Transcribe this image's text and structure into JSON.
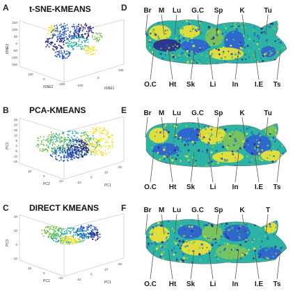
{
  "panels_left": [
    {
      "letter": "A",
      "title": "t-SNE-KMEANS",
      "axis_z_label": "tSNE3",
      "axis_x_label": "tSNE2",
      "axis_y_label": "tSNE1",
      "z_ticks": [
        "150",
        "100",
        "50",
        "0",
        "-50",
        "-100",
        "-150"
      ],
      "x_ticks": [
        "100",
        "0",
        "-100"
      ],
      "y_ticks": [
        "-100",
        "0",
        "100"
      ]
    },
    {
      "letter": "B",
      "title": "PCA-KMEANS",
      "axis_z_label": "PC3",
      "axis_x_label": "PC2",
      "axis_y_label": "PC1",
      "z_ticks": [
        "25",
        "20",
        "15",
        "10",
        "5",
        "0",
        "-5",
        "-10",
        "-15"
      ],
      "x_ticks": [
        "10",
        "0",
        "-10"
      ],
      "y_ticks": [
        "-10",
        "0",
        "10",
        "20"
      ]
    },
    {
      "letter": "C",
      "title": "DIRECT KMEANS",
      "axis_z_label": "PC3",
      "axis_x_label": "PC2",
      "axis_y_label": "PC1",
      "z_ticks": [
        "20",
        "10",
        "0",
        "-10"
      ],
      "x_ticks": [
        "10",
        "0",
        "-10"
      ],
      "y_ticks": [
        "-10",
        "0",
        "10",
        "20"
      ]
    }
  ],
  "panels_right": [
    {
      "letter": "D",
      "top_labels": [
        "Br",
        "M",
        "Lu",
        "G.C",
        "Sp",
        "K",
        "Tu"
      ],
      "bottom_labels": [
        "O.C",
        "Ht",
        "Sk",
        "Li",
        "In",
        "I.E",
        "Ts"
      ]
    },
    {
      "letter": "E",
      "top_labels": [
        "Br",
        "M",
        "Lu",
        "G.C",
        "Sp",
        "K",
        "Tu"
      ],
      "bottom_labels": [
        "O.C",
        "Ht",
        "Sk",
        "Li",
        "In",
        "I.E",
        "Ts"
      ]
    },
    {
      "letter": "F",
      "top_labels": [
        "Br",
        "M",
        "Lu",
        "G.C",
        "Sp",
        "K",
        "T"
      ],
      "bottom_labels": [
        "O.C",
        "Ht",
        "Sk",
        "Li",
        "In",
        "I.E",
        "Ts"
      ]
    }
  ],
  "palette": {
    "dark_blue": "#2b2a8a",
    "blue": "#2f5fd0",
    "teal": "#2bb3a3",
    "green": "#7fc455",
    "yellow": "#f2e233",
    "outline": "#666666",
    "arrow": "#555555"
  }
}
